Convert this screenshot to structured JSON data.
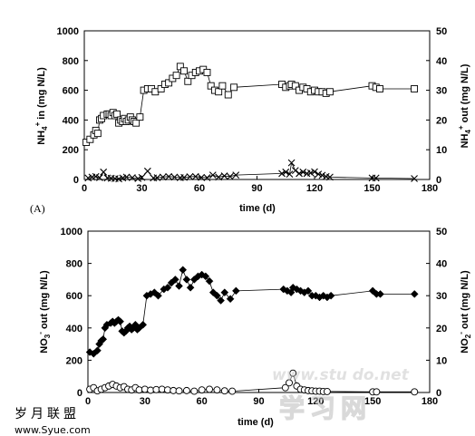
{
  "chart_data": [
    {
      "type": "scatter",
      "panel_label": "(A)",
      "xlabel": "time (d)",
      "ylabel_left": "NH4+ in (mg N/L)",
      "ylabel_right": "NH4+ out (mg N/L)",
      "xlim": [
        0,
        180
      ],
      "xticks": [
        0,
        30,
        60,
        90,
        120,
        150,
        180
      ],
      "ylim_left": [
        0,
        1000
      ],
      "yticks_left": [
        0,
        200,
        400,
        600,
        800,
        1000
      ],
      "ylim_right": [
        0,
        50
      ],
      "yticks_right": [
        0,
        10,
        20,
        30,
        40,
        50
      ],
      "grid": false,
      "series": [
        {
          "axis": "left",
          "marker": "open-square",
          "line": true,
          "x": [
            1,
            3,
            5,
            6,
            7,
            8,
            9,
            10,
            12,
            13,
            14,
            15,
            16,
            17,
            18,
            19,
            20,
            21,
            22,
            23,
            24,
            25,
            26,
            27,
            29,
            31,
            33,
            35,
            37,
            40,
            42,
            44,
            46,
            48,
            50,
            52,
            54,
            56,
            58,
            60,
            62,
            64,
            66,
            68,
            70,
            72,
            75,
            78,
            103,
            105,
            107,
            108,
            110,
            112,
            114,
            116,
            118,
            120,
            122,
            124,
            126,
            128,
            150,
            152,
            154,
            172
          ],
          "y": [
            250,
            270,
            300,
            330,
            310,
            400,
            410,
            430,
            440,
            440,
            430,
            450,
            430,
            440,
            380,
            400,
            390,
            410,
            390,
            400,
            420,
            400,
            390,
            380,
            420,
            600,
            610,
            610,
            590,
            610,
            640,
            650,
            680,
            700,
            760,
            730,
            660,
            700,
            720,
            730,
            740,
            720,
            630,
            600,
            590,
            630,
            570,
            620,
            640,
            620,
            630,
            640,
            630,
            600,
            620,
            610,
            590,
            600,
            590,
            590,
            580,
            590,
            630,
            620,
            610,
            610
          ]
        },
        {
          "axis": "right",
          "marker": "x",
          "line": true,
          "x": [
            2,
            4,
            6,
            8,
            10,
            12,
            14,
            16,
            18,
            20,
            22,
            25,
            28,
            30,
            33,
            36,
            38,
            41,
            44,
            47,
            50,
            52,
            55,
            58,
            61,
            64,
            67,
            70,
            73,
            76,
            79,
            103,
            105,
            107,
            108,
            110,
            112,
            114,
            116,
            118,
            120,
            122,
            124,
            126,
            128,
            150,
            152,
            172
          ],
          "y": [
            0.5,
            0.8,
            1.0,
            0.6,
            2.5,
            0.5,
            0.4,
            0.3,
            0.2,
            0.5,
            0.8,
            0.6,
            0.3,
            0.7,
            2.8,
            0.5,
            0.6,
            0.8,
            1.0,
            0.8,
            0.6,
            0.7,
            0.9,
            1.0,
            0.7,
            0.6,
            1.5,
            0.8,
            1.2,
            1.0,
            1.5,
            2.0,
            2.5,
            1.8,
            5.6,
            3.0,
            2.0,
            2.5,
            2.0,
            2.2,
            2.6,
            1.8,
            1.4,
            1.0,
            0.8,
            0.5,
            0.5,
            0.3
          ]
        }
      ]
    },
    {
      "type": "scatter",
      "xlabel": "time (d)",
      "ylabel_left": "NO3- out (mg N/L)",
      "ylabel_right": "NO2- out (mg N/L)",
      "xlim": [
        0,
        180
      ],
      "xticks": [
        0,
        30,
        60,
        90,
        120,
        150,
        180
      ],
      "ylim_left": [
        0,
        1000
      ],
      "yticks_left": [
        0,
        200,
        400,
        600,
        800,
        1000
      ],
      "ylim_right": [
        0,
        50
      ],
      "yticks_right": [
        0,
        10,
        20,
        30,
        40,
        50
      ],
      "grid": false,
      "series": [
        {
          "axis": "left",
          "marker": "filled-diamond",
          "line": true,
          "x": [
            1,
            3,
            5,
            6,
            7,
            8,
            9,
            10,
            12,
            13,
            14,
            15,
            16,
            17,
            18,
            19,
            20,
            21,
            22,
            23,
            24,
            25,
            26,
            27,
            29,
            31,
            33,
            35,
            37,
            40,
            42,
            44,
            46,
            48,
            50,
            52,
            54,
            56,
            58,
            60,
            62,
            64,
            66,
            68,
            70,
            72,
            75,
            78,
            103,
            105,
            107,
            108,
            110,
            112,
            114,
            116,
            118,
            120,
            122,
            124,
            126,
            128,
            150,
            152,
            154,
            172
          ],
          "y": [
            250,
            240,
            260,
            300,
            320,
            330,
            400,
            420,
            430,
            440,
            430,
            440,
            450,
            440,
            380,
            370,
            380,
            400,
            410,
            390,
            400,
            420,
            390,
            400,
            420,
            600,
            610,
            620,
            600,
            640,
            650,
            680,
            700,
            660,
            760,
            700,
            650,
            700,
            720,
            730,
            720,
            690,
            620,
            600,
            570,
            620,
            580,
            630,
            640,
            630,
            620,
            650,
            640,
            630,
            620,
            630,
            600,
            600,
            590,
            600,
            590,
            600,
            630,
            610,
            610,
            610
          ]
        },
        {
          "axis": "right",
          "marker": "open-circle",
          "line": true,
          "x": [
            1,
            3,
            5,
            7,
            9,
            11,
            13,
            15,
            17,
            19,
            21,
            23,
            25,
            27,
            30,
            33,
            36,
            39,
            42,
            45,
            48,
            52,
            56,
            60,
            64,
            68,
            72,
            76,
            104,
            106,
            108,
            110,
            112,
            114,
            116,
            118,
            120,
            122,
            124,
            126,
            150,
            152,
            172
          ],
          "y": [
            1.0,
            1.5,
            0.5,
            1.0,
            1.5,
            2.0,
            2.5,
            2.0,
            1.5,
            1.8,
            1.0,
            0.8,
            1.5,
            0.8,
            1.0,
            0.7,
            0.9,
            1.0,
            0.8,
            0.6,
            0.5,
            0.6,
            0.4,
            0.8,
            1.0,
            0.8,
            0.5,
            0.4,
            1.5,
            3.0,
            6.0,
            2.0,
            1.0,
            0.8,
            0.6,
            0.5,
            0.4,
            0.4,
            0.3,
            0.3,
            0.2,
            0.2,
            0.2
          ]
        }
      ]
    }
  ],
  "watermark": {
    "url": "www.stu do.net",
    "logo_text": "学习网",
    "site_cn": "岁月联盟",
    "site_url": "www.Syue.com"
  }
}
